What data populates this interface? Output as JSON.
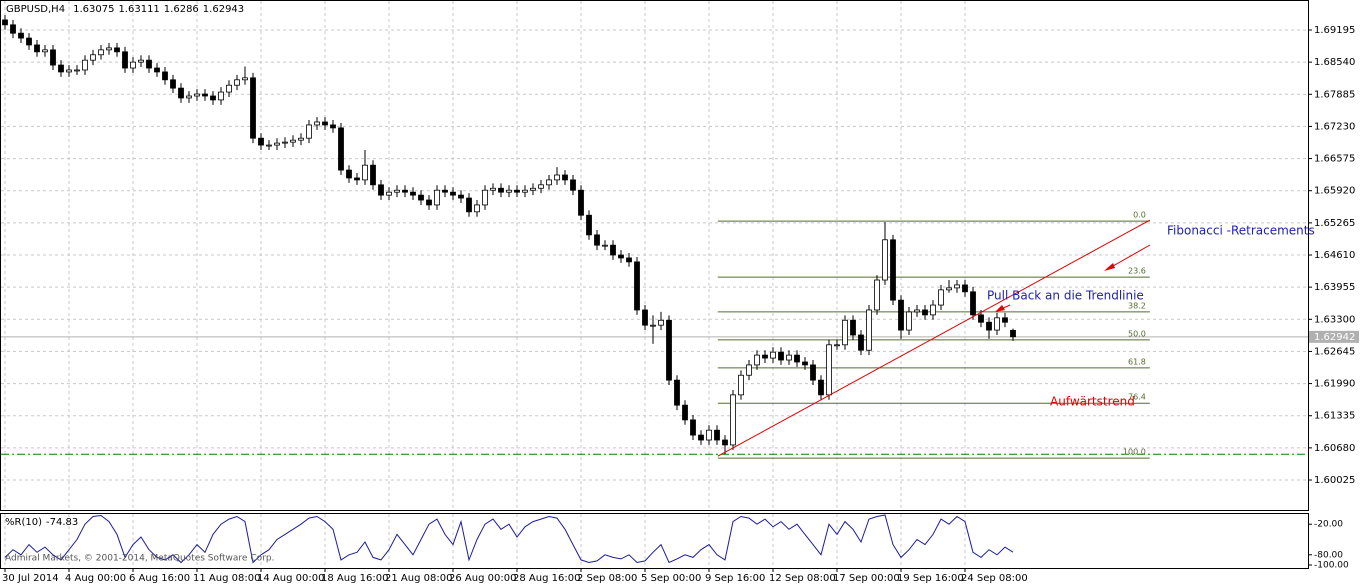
{
  "chart_data": {
    "type": "candlestick",
    "symbol": "GBPUSD,H4",
    "ohlc": [
      [
        1.694,
        1.695,
        1.692,
        1.693
      ],
      [
        1.693,
        1.694,
        1.6903,
        1.6913
      ],
      [
        1.6913,
        1.6923,
        1.6893,
        1.6903
      ],
      [
        1.6903,
        1.6913,
        1.6879,
        1.6889
      ],
      [
        1.6889,
        1.6899,
        1.6865,
        1.6875
      ],
      [
        1.6875,
        1.6889,
        1.6865,
        1.6879
      ],
      [
        1.6879,
        1.6889,
        1.6838,
        1.6848
      ],
      [
        1.6848,
        1.6858,
        1.6824,
        1.6834
      ],
      [
        1.6834,
        1.6848,
        1.6824,
        1.6838
      ],
      [
        1.6838,
        1.6848,
        1.6828,
        1.6838
      ],
      [
        1.6838,
        1.6868,
        1.6828,
        1.6858
      ],
      [
        1.6858,
        1.6879,
        1.6848,
        1.6869
      ],
      [
        1.6869,
        1.6889,
        1.6859,
        1.6879
      ],
      [
        1.6879,
        1.6893,
        1.6869,
        1.6883
      ],
      [
        1.6883,
        1.6893,
        1.6865,
        1.6875
      ],
      [
        1.6875,
        1.6885,
        1.6832,
        1.6842
      ],
      [
        1.6842,
        1.6864,
        1.6832,
        1.6854
      ],
      [
        1.6854,
        1.6868,
        1.6844,
        1.6858
      ],
      [
        1.6858,
        1.6868,
        1.6832,
        1.6842
      ],
      [
        1.6842,
        1.6852,
        1.6824,
        1.6834
      ],
      [
        1.6834,
        1.6844,
        1.6808,
        1.6818
      ],
      [
        1.6818,
        1.6828,
        1.6791,
        1.6801
      ],
      [
        1.6801,
        1.6811,
        1.6771,
        1.6781
      ],
      [
        1.6781,
        1.6795,
        1.6771,
        1.6785
      ],
      [
        1.6785,
        1.6799,
        1.6775,
        1.6789
      ],
      [
        1.6789,
        1.6799,
        1.6775,
        1.6785
      ],
      [
        1.6785,
        1.6795,
        1.6767,
        1.6777
      ],
      [
        1.6777,
        1.6803,
        1.6767,
        1.6793
      ],
      [
        1.6793,
        1.6817,
        1.6783,
        1.6807
      ],
      [
        1.6807,
        1.6828,
        1.6797,
        1.6818
      ],
      [
        1.6818,
        1.6845,
        1.6808,
        1.6822
      ],
      [
        1.6822,
        1.6832,
        1.6689,
        1.6699
      ],
      [
        1.6699,
        1.6709,
        1.6675,
        1.6685
      ],
      [
        1.6685,
        1.6695,
        1.6675,
        1.6685
      ],
      [
        1.6685,
        1.6699,
        1.6675,
        1.6689
      ],
      [
        1.6689,
        1.6701,
        1.6679,
        1.6691
      ],
      [
        1.6691,
        1.6705,
        1.6681,
        1.6695
      ],
      [
        1.6695,
        1.6709,
        1.6685,
        1.6699
      ],
      [
        1.6699,
        1.6736,
        1.6689,
        1.6726
      ],
      [
        1.6726,
        1.6742,
        1.6716,
        1.6732
      ],
      [
        1.6732,
        1.6742,
        1.6716,
        1.6726
      ],
      [
        1.6726,
        1.6736,
        1.671,
        1.672
      ],
      [
        1.672,
        1.673,
        1.6624,
        1.6634
      ],
      [
        1.6634,
        1.6644,
        1.6608,
        1.6618
      ],
      [
        1.6618,
        1.6628,
        1.6604,
        1.6614
      ],
      [
        1.6614,
        1.6675,
        1.6604,
        1.6644
      ],
      [
        1.6644,
        1.6654,
        1.6594,
        1.6604
      ],
      [
        1.6604,
        1.6614,
        1.6573,
        1.6583
      ],
      [
        1.6583,
        1.6599,
        1.6573,
        1.6589
      ],
      [
        1.6589,
        1.6603,
        1.6579,
        1.6593
      ],
      [
        1.6593,
        1.6603,
        1.6579,
        1.6589
      ],
      [
        1.6589,
        1.6599,
        1.6573,
        1.6583
      ],
      [
        1.6583,
        1.6593,
        1.6563,
        1.6573
      ],
      [
        1.6573,
        1.6583,
        1.6553,
        1.6563
      ],
      [
        1.6563,
        1.6603,
        1.6553,
        1.6593
      ],
      [
        1.6593,
        1.6603,
        1.6579,
        1.6589
      ],
      [
        1.6589,
        1.6599,
        1.6573,
        1.6583
      ],
      [
        1.6583,
        1.6593,
        1.6567,
        1.6577
      ],
      [
        1.6577,
        1.6587,
        1.6539,
        1.6549
      ],
      [
        1.6549,
        1.6573,
        1.6539,
        1.6563
      ],
      [
        1.6563,
        1.6603,
        1.6553,
        1.6593
      ],
      [
        1.6593,
        1.6607,
        1.6583,
        1.6597
      ],
      [
        1.6597,
        1.6607,
        1.6579,
        1.6589
      ],
      [
        1.6589,
        1.6603,
        1.6579,
        1.6593
      ],
      [
        1.6593,
        1.6603,
        1.6579,
        1.6589
      ],
      [
        1.6589,
        1.6603,
        1.6579,
        1.6593
      ],
      [
        1.6593,
        1.6607,
        1.6583,
        1.6597
      ],
      [
        1.6597,
        1.6614,
        1.6587,
        1.6604
      ],
      [
        1.6604,
        1.6624,
        1.6594,
        1.6614
      ],
      [
        1.6614,
        1.664,
        1.6604,
        1.6624
      ],
      [
        1.6624,
        1.6634,
        1.6604,
        1.6614
      ],
      [
        1.6614,
        1.6624,
        1.6583,
        1.6593
      ],
      [
        1.6593,
        1.6603,
        1.6532,
        1.6542
      ],
      [
        1.6542,
        1.6552,
        1.6492,
        1.6502
      ],
      [
        1.6502,
        1.6512,
        1.6471,
        1.6481
      ],
      [
        1.6481,
        1.6491,
        1.6471,
        1.6481
      ],
      [
        1.6481,
        1.6491,
        1.6451,
        1.6461
      ],
      [
        1.6461,
        1.6471,
        1.6445,
        1.6455
      ],
      [
        1.6455,
        1.6465,
        1.6437,
        1.6447
      ],
      [
        1.6447,
        1.6457,
        1.6339,
        1.6349
      ],
      [
        1.6349,
        1.6359,
        1.6308,
        1.6318
      ],
      [
        1.6318,
        1.6338,
        1.628,
        1.6318
      ],
      [
        1.6318,
        1.6345,
        1.6308,
        1.6328
      ],
      [
        1.6328,
        1.6338,
        1.6196,
        1.6206
      ],
      [
        1.6206,
        1.6216,
        1.6145,
        1.6155
      ],
      [
        1.6155,
        1.6165,
        1.6115,
        1.6125
      ],
      [
        1.6125,
        1.6135,
        1.6084,
        1.6094
      ],
      [
        1.6094,
        1.6104,
        1.6074,
        1.6084
      ],
      [
        1.6084,
        1.6114,
        1.6074,
        1.6104
      ],
      [
        1.6104,
        1.6114,
        1.6074,
        1.6084
      ],
      [
        1.6084,
        1.6094,
        1.6055,
        1.6074
      ],
      [
        1.6074,
        1.6186,
        1.6064,
        1.6176
      ],
      [
        1.6176,
        1.6226,
        1.6166,
        1.6216
      ],
      [
        1.6216,
        1.6247,
        1.6206,
        1.6237
      ],
      [
        1.6237,
        1.6267,
        1.6227,
        1.6257
      ],
      [
        1.6257,
        1.6267,
        1.6241,
        1.6251
      ],
      [
        1.6251,
        1.6273,
        1.6241,
        1.6263
      ],
      [
        1.6263,
        1.6273,
        1.6237,
        1.6247
      ],
      [
        1.6247,
        1.6267,
        1.6237,
        1.6257
      ],
      [
        1.6257,
        1.6267,
        1.6233,
        1.6243
      ],
      [
        1.6243,
        1.6253,
        1.6227,
        1.6237
      ],
      [
        1.6237,
        1.6247,
        1.6196,
        1.6206
      ],
      [
        1.6206,
        1.6216,
        1.6166,
        1.6176
      ],
      [
        1.6176,
        1.6288,
        1.6166,
        1.6278
      ],
      [
        1.6278,
        1.6288,
        1.6268,
        1.6278
      ],
      [
        1.6278,
        1.6338,
        1.6268,
        1.6328
      ],
      [
        1.6328,
        1.6338,
        1.6288,
        1.6298
      ],
      [
        1.6298,
        1.6308,
        1.6257,
        1.6267
      ],
      [
        1.6267,
        1.6359,
        1.6257,
        1.6349
      ],
      [
        1.6349,
        1.642,
        1.6339,
        1.641
      ],
      [
        1.641,
        1.6528,
        1.64,
        1.6492
      ],
      [
        1.6492,
        1.6502,
        1.6359,
        1.6369
      ],
      [
        1.6369,
        1.6379,
        1.629,
        1.6308
      ],
      [
        1.6308,
        1.6355,
        1.6298,
        1.6345
      ],
      [
        1.6345,
        1.6359,
        1.6335,
        1.6349
      ],
      [
        1.6349,
        1.6359,
        1.6329,
        1.6339
      ],
      [
        1.6339,
        1.6369,
        1.6329,
        1.6359
      ],
      [
        1.6359,
        1.64,
        1.6349,
        1.639
      ],
      [
        1.639,
        1.641,
        1.6384,
        1.6394
      ],
      [
        1.6394,
        1.641,
        1.6384,
        1.64
      ],
      [
        1.64,
        1.641,
        1.6376,
        1.6386
      ],
      [
        1.6386,
        1.6396,
        1.6329,
        1.6339
      ],
      [
        1.6339,
        1.6349,
        1.6314,
        1.6324
      ],
      [
        1.6324,
        1.6334,
        1.629,
        1.6308
      ],
      [
        1.6308,
        1.6343,
        1.6298,
        1.6333
      ],
      [
        1.6333,
        1.6343,
        1.6314,
        1.6324
      ],
      [
        1.63075,
        1.63111,
        1.6286,
        1.62943
      ]
    ],
    "up_color": "#ffffff",
    "down_color": "#000000",
    "xlim": [
      -0.625,
      162.875
    ],
    "xticks": [
      {
        "value": 0,
        "label": "30 Jul 2014"
      },
      {
        "value": 8,
        "label": "4 Aug 00:00"
      },
      {
        "value": 16,
        "label": "6 Aug 16:00"
      },
      {
        "value": 24,
        "label": "11 Aug 08:00"
      },
      {
        "value": 32,
        "label": "14 Aug 00:00"
      },
      {
        "value": 40,
        "label": "18 Aug 16:00"
      },
      {
        "value": 48,
        "label": "21 Aug 08:00"
      },
      {
        "value": 56,
        "label": "26 Aug 00:00"
      },
      {
        "value": 64,
        "label": "28 Aug 16:00"
      },
      {
        "value": 72,
        "label": "2 Sep 08:00"
      },
      {
        "value": 80,
        "label": "5 Sep 00:00"
      },
      {
        "value": 88,
        "label": "9 Sep 16:00"
      },
      {
        "value": 96,
        "label": "12 Sep 08:00"
      },
      {
        "value": 104,
        "label": "17 Sep 00:00"
      },
      {
        "value": 112,
        "label": "19 Sep 16:00"
      },
      {
        "value": 120,
        "label": "24 Sep 08:00"
      }
    ],
    "ylim": [
      1.59414,
      1.69806
    ],
    "yticks": [
      1.69195,
      {
        "value": 1.6854,
        "label": "1.68540"
      },
      1.67885,
      {
        "value": 1.6723,
        "label": "1.67230"
      },
      1.66575,
      {
        "value": 1.6592,
        "label": "1.65920"
      },
      1.65265,
      {
        "value": 1.6461,
        "label": "1.64610"
      },
      1.63955,
      {
        "value": 1.633,
        "label": "1.63300"
      },
      1.62645,
      {
        "value": 1.6199,
        "label": "1.61990"
      },
      1.61335,
      {
        "value": 1.6068,
        "label": "1.60680"
      },
      1.60025
    ],
    "grid": true,
    "current_price": 1.62942,
    "support_line": 1.6055,
    "fibonacci": {
      "x": [
        89.1,
        143.1
      ],
      "color": "#556b2f",
      "levels": [
        {
          "label": "0.0",
          "price": 1.653
        },
        {
          "label": "23.6",
          "price": 1.6416
        },
        {
          "label": "38.2",
          "price": 1.6345
        },
        {
          "label": "50.0",
          "price": 1.6288
        },
        {
          "label": "61.8",
          "price": 1.6231
        },
        {
          "label": "76.4",
          "price": 1.6159
        },
        {
          "label": "100.0",
          "price": 1.6047
        }
      ]
    },
    "trendline": {
      "x": [
        89.1,
        143.1
      ],
      "y": [
        1.6051,
        1.6532
      ],
      "color": "#e00000"
    },
    "annotations": [
      {
        "text": "Fibonacci -Retracements",
        "color": "#2020b0"
      },
      {
        "text": "Pull Back an die Trendlinie",
        "color": "#2020b0"
      },
      {
        "text": "Aufwärtstrend",
        "color": "#e00000"
      }
    ],
    "indicator": {
      "type": "line",
      "name": "%R(10)",
      "color": "#1c1ca0",
      "ylim": [
        -100,
        0
      ],
      "yticks": [
        {
          "value": -20,
          "label": "-20.00"
        },
        {
          "value": -80,
          "label": "-80.00"
        },
        {
          "value": -100,
          "label": "-100.00"
        }
      ],
      "values": [
        -85,
        -70,
        -80,
        -60,
        -75,
        -65,
        -80,
        -90,
        -70,
        -50,
        -20,
        -5,
        -3,
        -15,
        -40,
        -85,
        -60,
        -45,
        -70,
        -85,
        -90,
        -80,
        -95,
        -80,
        -60,
        -75,
        -40,
        -20,
        -10,
        -5,
        -15,
        -95,
        -80,
        -70,
        -50,
        -40,
        -30,
        -20,
        -8,
        -5,
        -15,
        -30,
        -90,
        -80,
        -75,
        -55,
        -85,
        -90,
        -70,
        -40,
        -60,
        -80,
        -50,
        -20,
        -10,
        -40,
        -60,
        -15,
        -90,
        -50,
        -20,
        -10,
        -30,
        -20,
        -45,
        -25,
        -15,
        -10,
        -5,
        -8,
        -30,
        -60,
        -90,
        -95,
        -92,
        -80,
        -85,
        -88,
        -80,
        -95,
        -92,
        -75,
        -60,
        -95,
        -88,
        -80,
        -85,
        -70,
        -60,
        -80,
        -90,
        -15,
        -5,
        -8,
        -20,
        -10,
        -25,
        -15,
        -30,
        -20,
        -40,
        -60,
        -80,
        -20,
        -40,
        -15,
        -30,
        -55,
        -10,
        -5,
        -2,
        -60,
        -85,
        -70,
        -50,
        -60,
        -40,
        -10,
        -20,
        -5,
        -15,
        -75,
        -85,
        -70,
        -80,
        -65,
        -74.83
      ]
    },
    "copyright": "Admiral Markets, © 2001-2014, MetaQuotes Software Corp."
  }
}
